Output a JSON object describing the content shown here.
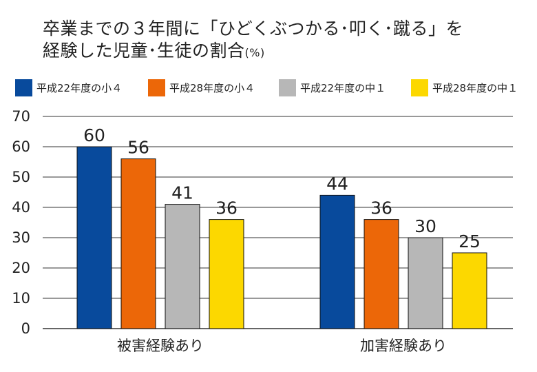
{
  "title_line1": "卒業までの３年間に「ひどくぶつかる･叩く･蹴る」を",
  "title_line2": "経験した児童･生徒の割合",
  "title_unit": "(%)",
  "colors": {
    "series1": "#084a9c",
    "series2": "#ec6708",
    "series3": "#b7b7b7",
    "series4": "#fcd800",
    "grid": "#333333"
  },
  "chart_data": {
    "type": "bar",
    "title": "卒業までの３年間に「ひどくぶつかる･叩く･蹴る」を経験した児童･生徒の割合 (%)",
    "categories": [
      "被害経験あり",
      "加害経験あり"
    ],
    "series": [
      {
        "name": "平成22年度の小４",
        "values": [
          60,
          44
        ]
      },
      {
        "name": "平成28年度の小４",
        "values": [
          56,
          36
        ]
      },
      {
        "name": "平成22年度の中１",
        "values": [
          41,
          30
        ]
      },
      {
        "name": "平成28年度の中１",
        "values": [
          36,
          25
        ]
      }
    ],
    "y_ticks": [
      0,
      10,
      20,
      30,
      40,
      50,
      60,
      70
    ],
    "ylim": [
      0,
      70
    ],
    "grid": true,
    "legend_position": "top",
    "data_labels": true
  }
}
